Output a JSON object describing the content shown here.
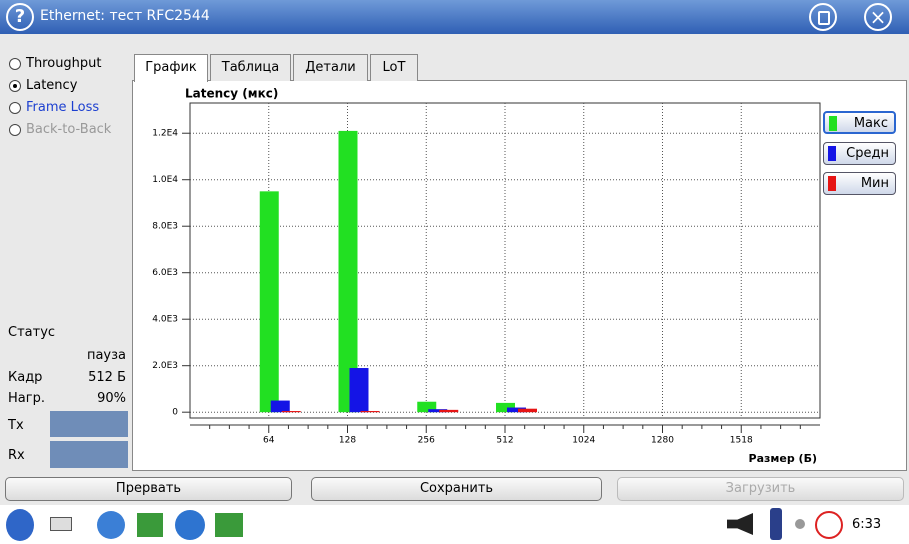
{
  "window": {
    "title": "Ethernet: тест RFC2544"
  },
  "tests": [
    "Throughput",
    "Latency",
    "Frame Loss",
    "Back-to-Back"
  ],
  "status": {
    "label": "Статус",
    "state": "пауза",
    "frame_label": "Кадр",
    "frame": "512 Б",
    "load_label": "Нагр.",
    "load": "90%",
    "tx": "Tx",
    "rx": "Rx"
  },
  "tabs": [
    "График",
    "Таблица",
    "Детали",
    "LoT"
  ],
  "buttons": [
    "Прервать",
    "Сохранить",
    "Загрузить"
  ],
  "taskbar": {
    "time": "6:33"
  },
  "chart_data": {
    "type": "bar",
    "title": "Latency (мкс)",
    "x_label": "Размер (Б)",
    "categories": [
      "64",
      "128",
      "256",
      "512",
      "1024",
      "1280",
      "1518"
    ],
    "series": [
      {
        "name": "Макс",
        "color": "#22e022",
        "values": [
          9500,
          12100,
          450,
          400,
          null,
          null,
          null
        ]
      },
      {
        "name": "Средн",
        "color": "#1414e6",
        "values": [
          500,
          1900,
          130,
          200,
          null,
          null,
          null
        ]
      },
      {
        "name": "Мин",
        "color": "#e61414",
        "values": [
          50,
          50,
          100,
          150,
          null,
          null,
          null
        ]
      }
    ],
    "ylim": [
      -250,
      13300
    ],
    "yticks": [
      0,
      {
        "value": 2000,
        "label": "2.0E3"
      },
      {
        "value": 4000,
        "label": "4.0E3"
      },
      {
        "value": 6000,
        "label": "6.0E3"
      },
      {
        "value": 8000,
        "label": "8.0E3"
      },
      {
        "value": 10000,
        "label": "1.0E4"
      },
      {
        "value": 12000,
        "label": "1.2E4"
      }
    ],
    "grid": true
  }
}
